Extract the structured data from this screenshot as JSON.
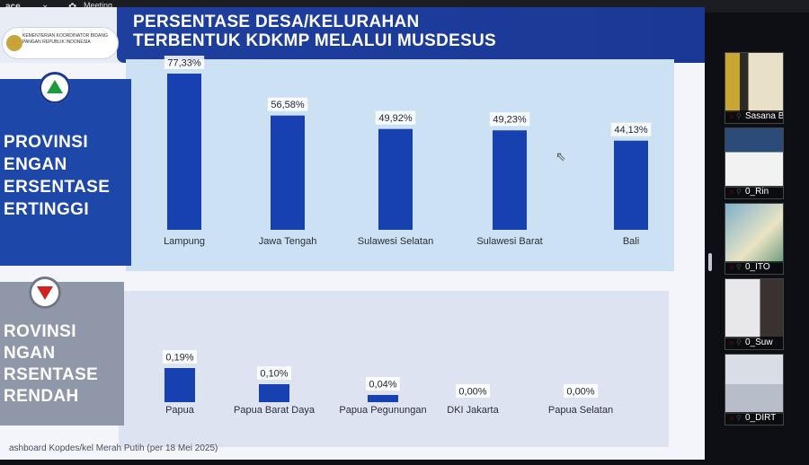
{
  "meeting_bar": {
    "app_label": "ace",
    "meeting_label": "Meeting"
  },
  "slide": {
    "title_line1": "PERSENTASE DESA/KELURAHAN",
    "title_line2": "TERBENTUK KDKMP MELALUI MUSDESUS",
    "logo_text": "KEMENTERIAN KOORDINATOR BIDANG PANGAN REPUBLIK INDONESIA",
    "top_side_label": [
      "PROVINSI",
      "ENGAN",
      "ERSENTASE",
      "ERTINGGI"
    ],
    "bottom_side_label": [
      "ROVINSI",
      "NGAN",
      "RSENTASE",
      "RENDAH"
    ],
    "footer": "ashboard Kopdes/kel Merah Putih (per 18 Mei 2025)"
  },
  "chart_data": [
    {
      "type": "bar",
      "title": "",
      "categories": [
        "Lampung",
        "Jawa Tengah",
        "Sulawesi Selatan",
        "Sulawesi Barat",
        "Bali"
      ],
      "values": [
        77.33,
        56.58,
        49.92,
        49.23,
        44.13
      ],
      "data_labels": [
        "77,33%",
        "56,58%",
        "49,92%",
        "49,23%",
        "44,13%"
      ],
      "ylim": [
        0,
        80
      ],
      "color": "#1740b0"
    },
    {
      "type": "bar",
      "title": "",
      "categories": [
        "Papua",
        "Papua Barat Daya",
        "Papua Pegunungan",
        "DKI Jakarta",
        "Papua Selatan"
      ],
      "values": [
        0.19,
        0.1,
        0.04,
        0.0,
        0.0
      ],
      "data_labels": [
        "0,19%",
        "0,10%",
        "0,04%",
        "0,00%",
        "0,00%"
      ],
      "ylim": [
        0,
        0.6
      ],
      "color": "#1740b0"
    }
  ],
  "participants": [
    {
      "name": "Sasana B"
    },
    {
      "name": "0_Rin"
    },
    {
      "name": "0_ITO"
    },
    {
      "name": "0_Suw"
    },
    {
      "name": "0_DIRT"
    }
  ],
  "colors": {
    "header_blue": "#1e3f9e",
    "bar_blue": "#1740b0",
    "top_panel": "#cde1f4",
    "bottom_panel": "#dde3f0"
  }
}
